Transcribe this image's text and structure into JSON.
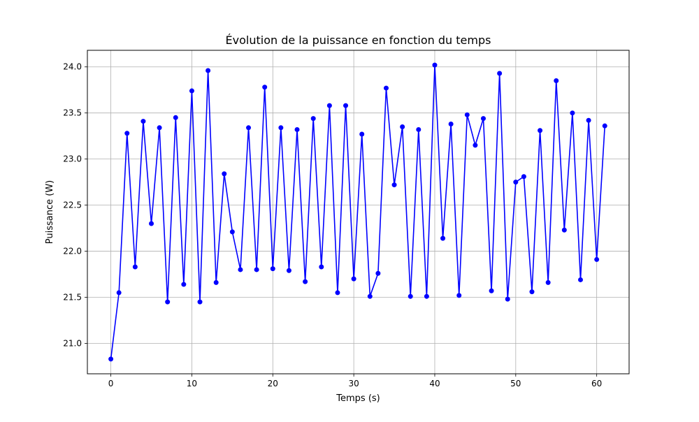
{
  "chart_data": {
    "type": "line",
    "title": "Évolution de la puissance en fonction du temps",
    "xlabel": "Temps (s)",
    "ylabel": "Puissance (W)",
    "xlim": [
      -2.9,
      64.0
    ],
    "ylim": [
      20.67,
      24.18
    ],
    "xticks": [
      0,
      10,
      20,
      30,
      40,
      50,
      60
    ],
    "yticks": [
      21.0,
      21.5,
      22.0,
      22.5,
      23.0,
      23.5,
      24.0
    ],
    "ytick_labels": [
      "21.0",
      "21.5",
      "22.0",
      "22.5",
      "23.0",
      "23.5",
      "24.0"
    ],
    "grid": true,
    "line_color": "#0000ff",
    "series": [
      {
        "x": [
          0,
          1,
          2,
          3,
          4,
          5,
          6,
          7,
          8,
          9,
          10,
          11,
          12,
          13,
          14,
          15,
          16,
          17,
          18,
          19,
          20,
          21,
          22,
          23,
          24,
          25,
          26,
          27,
          28,
          29,
          30,
          31,
          32,
          33,
          34,
          35,
          36,
          37,
          38,
          39,
          40,
          41,
          42,
          43,
          44,
          45,
          46,
          47,
          48,
          49,
          50,
          51,
          52,
          53,
          54,
          55,
          56,
          57,
          58,
          59,
          60,
          61
        ],
        "values": [
          20.83,
          21.55,
          23.28,
          21.83,
          23.41,
          22.3,
          23.34,
          21.45,
          23.45,
          21.64,
          23.74,
          21.45,
          23.96,
          21.66,
          22.84,
          22.21,
          21.8,
          23.34,
          21.8,
          23.78,
          21.81,
          23.34,
          21.79,
          23.32,
          21.67,
          23.44,
          21.83,
          23.58,
          21.55,
          23.58,
          21.7,
          23.27,
          21.51,
          21.76,
          23.77,
          22.72,
          23.35,
          21.51,
          23.32,
          21.51,
          24.02,
          22.14,
          23.38,
          21.52,
          23.48,
          23.15,
          23.44,
          21.57,
          23.93,
          21.48,
          22.75,
          22.81,
          21.56,
          23.31,
          21.66,
          23.85,
          22.23,
          23.5,
          21.69,
          23.42,
          21.91,
          23.36
        ]
      }
    ]
  }
}
